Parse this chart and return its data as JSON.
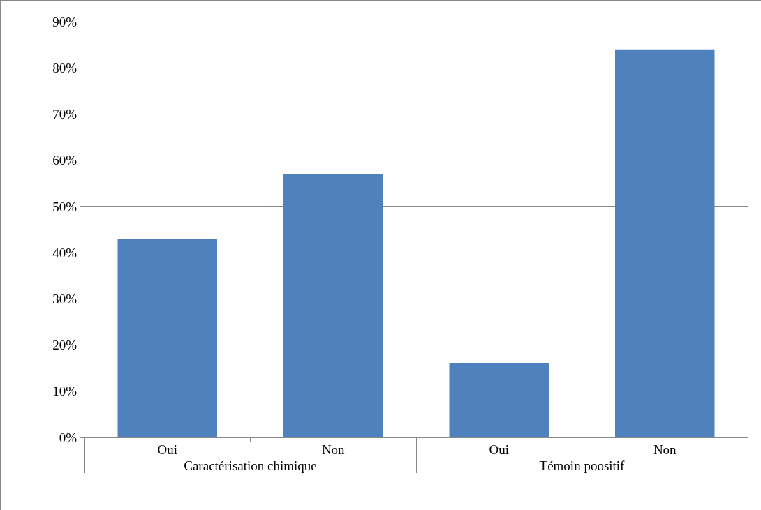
{
  "chart_data": {
    "type": "bar",
    "categories": [
      "Oui",
      "Non",
      "Oui",
      "Non"
    ],
    "values": [
      43,
      57,
      16,
      84
    ],
    "color": "#4f81bd",
    "annotations": [
      "Caractérisation chimique",
      "Témoin poositif"
    ],
    "ylim": [
      0,
      90
    ],
    "yticks": [
      {
        "value": 0,
        "label": "0%"
      },
      {
        "value": 10,
        "label": "10%"
      },
      {
        "value": 20,
        "label": "20%"
      },
      {
        "value": 30,
        "label": "30%"
      },
      {
        "value": 40,
        "label": "40%"
      },
      {
        "value": 50,
        "label": "50%"
      },
      {
        "value": 60,
        "label": "60%"
      },
      {
        "value": 70,
        "label": "70%"
      },
      {
        "value": 80,
        "label": "80%"
      },
      {
        "value": 90,
        "label": "90%"
      }
    ],
    "grid": "y"
  }
}
